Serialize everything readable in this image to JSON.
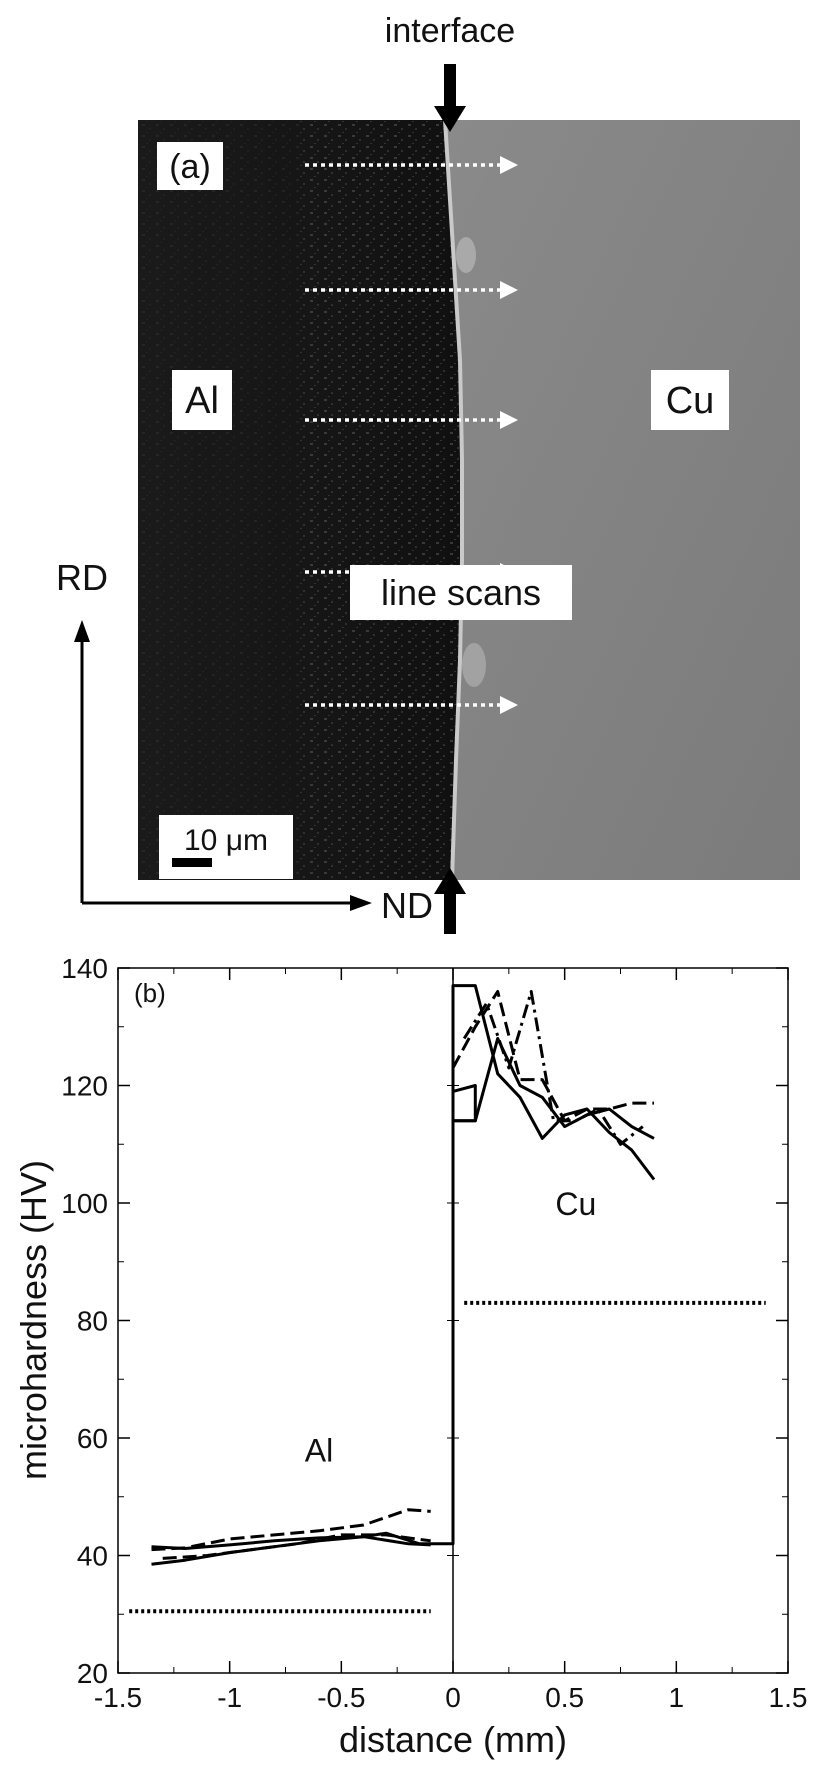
{
  "panel_a": {
    "label": "(a)",
    "interface_label": "interface",
    "left_material": "Al",
    "right_material": "Cu",
    "scan_label": "line scans",
    "scale_label": "10 μm",
    "axis_vertical": "RD",
    "axis_horizontal": "ND",
    "scan_count": 5
  },
  "chart_data": {
    "type": "line",
    "panel_label": "(b)",
    "xlabel": "distance (mm)",
    "ylabel": "microhardness (HV)",
    "xlim": [
      -1.5,
      1.5
    ],
    "ylim": [
      20,
      140
    ],
    "xticks": [
      -1.5,
      -1,
      -0.5,
      0,
      0.5,
      1,
      1.5
    ],
    "xtick_labels": [
      "-1.5",
      "-1",
      "-0.5",
      "0",
      "0.5",
      "1",
      "1.5"
    ],
    "yticks": [
      20,
      40,
      60,
      80,
      100,
      120,
      140
    ],
    "ytick_labels": [
      "20",
      "40",
      "60",
      "80",
      "100",
      "120",
      "140"
    ],
    "annotations": [
      {
        "text": "Al",
        "x": -0.6,
        "y": 56
      },
      {
        "text": "Cu",
        "x": 0.55,
        "y": 98
      }
    ],
    "series": [
      {
        "style": "solid",
        "x": [
          -1.35,
          -1.2,
          -1.0,
          -0.8,
          -0.6,
          -0.4,
          -0.2,
          -0.1
        ],
        "y": [
          41.5,
          41.2,
          41.8,
          42.5,
          43.0,
          43.2,
          42.0,
          41.8
        ]
      },
      {
        "style": "solid",
        "x": [
          -1.35,
          -1.2,
          -1.0,
          -0.8,
          -0.6,
          -0.4,
          -0.3,
          -0.15,
          -0.02
        ],
        "y": [
          38.5,
          39.2,
          40.5,
          41.5,
          42.5,
          43.2,
          43.8,
          42.0,
          42.0
        ]
      },
      {
        "style": "dash",
        "x": [
          -1.35,
          -1.2,
          -1.0,
          -0.8,
          -0.6,
          -0.4,
          -0.2,
          -0.1
        ],
        "y": [
          41.0,
          41.3,
          42.8,
          43.5,
          44.2,
          45.2,
          47.8,
          47.5
        ]
      },
      {
        "style": "dash",
        "x": [
          -1.3,
          -1.1,
          -0.9,
          -0.7,
          -0.5,
          -0.3,
          -0.1
        ],
        "y": [
          39.5,
          40.0,
          41.0,
          42.0,
          43.5,
          43.5,
          42.5
        ]
      },
      {
        "style": "solid",
        "x": [
          -0.02,
          0.0,
          0.0,
          0.1,
          0.2,
          0.3,
          0.4,
          0.5,
          0.6,
          0.7,
          0.8,
          0.9
        ],
        "y": [
          42.0,
          42.0,
          137.0,
          137.0,
          122.0,
          118.0,
          111.0,
          115.0,
          116.0,
          112.0,
          109.0,
          104.0
        ]
      },
      {
        "style": "solid",
        "x": [
          0.0,
          0.1,
          0.2,
          0.3,
          0.4,
          0.5,
          0.6,
          0.7,
          0.8,
          0.9
        ],
        "y": [
          114.0,
          114.0,
          128.0,
          120.0,
          118.0,
          113.0,
          115.0,
          116.0,
          113.0,
          111.0
        ]
      },
      {
        "style": "solid",
        "x": [
          0.0,
          0.1,
          0.1,
          0.0
        ],
        "y": [
          119.0,
          120.0,
          114.0,
          114.0
        ]
      },
      {
        "style": "dash",
        "x": [
          0.0,
          0.1,
          0.2,
          0.3,
          0.4,
          0.5,
          0.6,
          0.7,
          0.8,
          0.9
        ],
        "y": [
          123.0,
          130.0,
          136.0,
          121.0,
          121.0,
          114.0,
          116.0,
          116.0,
          117.0,
          117.0
        ]
      },
      {
        "style": "dashdot",
        "x": [
          0.05,
          0.15,
          0.25,
          0.35,
          0.45,
          0.55,
          0.65,
          0.75,
          0.85
        ],
        "y": [
          128.0,
          134.0,
          123.0,
          136.0,
          114.0,
          114.0,
          116.0,
          110.0,
          113.0
        ]
      },
      {
        "style": "dotted",
        "x": [
          -1.45,
          -0.1
        ],
        "y": [
          30.5,
          30.5
        ]
      },
      {
        "style": "dotted",
        "x": [
          0.05,
          1.4
        ],
        "y": [
          83.0,
          83.0
        ]
      }
    ]
  }
}
